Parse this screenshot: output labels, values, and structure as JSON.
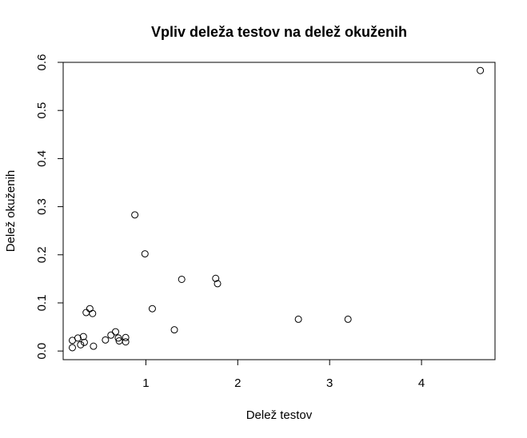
{
  "chart_data": {
    "type": "scatter",
    "title": "Vpliv deleža testov na delež okuženih",
    "xlabel": "Delež testov",
    "ylabel": "Delež okuženih",
    "xlim": [
      0.1,
      4.8
    ],
    "ylim": [
      -0.018,
      0.6
    ],
    "xticks": [
      1,
      2,
      3,
      4
    ],
    "yticks": [
      0.0,
      0.1,
      0.2,
      0.3,
      0.4,
      0.5,
      0.6
    ],
    "xtick_labels": [
      "1",
      "2",
      "3",
      "4"
    ],
    "ytick_labels": [
      "0.0",
      "0.1",
      "0.2",
      "0.3",
      "0.4",
      "0.5",
      "0.6"
    ],
    "grid": false,
    "legend": "none",
    "marker": "open-circle",
    "points": [
      {
        "x": 0.2,
        "y": 0.022
      },
      {
        "x": 0.2,
        "y": 0.007
      },
      {
        "x": 0.26,
        "y": 0.027
      },
      {
        "x": 0.29,
        "y": 0.013
      },
      {
        "x": 0.32,
        "y": 0.03
      },
      {
        "x": 0.33,
        "y": 0.018
      },
      {
        "x": 0.35,
        "y": 0.08
      },
      {
        "x": 0.39,
        "y": 0.088
      },
      {
        "x": 0.42,
        "y": 0.078
      },
      {
        "x": 0.43,
        "y": 0.01
      },
      {
        "x": 0.56,
        "y": 0.023
      },
      {
        "x": 0.62,
        "y": 0.033
      },
      {
        "x": 0.67,
        "y": 0.04
      },
      {
        "x": 0.7,
        "y": 0.027
      },
      {
        "x": 0.71,
        "y": 0.021
      },
      {
        "x": 0.78,
        "y": 0.019
      },
      {
        "x": 0.78,
        "y": 0.028
      },
      {
        "x": 0.88,
        "y": 0.283
      },
      {
        "x": 0.99,
        "y": 0.202
      },
      {
        "x": 1.07,
        "y": 0.088
      },
      {
        "x": 1.31,
        "y": 0.044
      },
      {
        "x": 1.39,
        "y": 0.149
      },
      {
        "x": 1.76,
        "y": 0.151
      },
      {
        "x": 1.78,
        "y": 0.14
      },
      {
        "x": 2.66,
        "y": 0.066
      },
      {
        "x": 3.2,
        "y": 0.066
      },
      {
        "x": 4.64,
        "y": 0.583
      }
    ]
  }
}
